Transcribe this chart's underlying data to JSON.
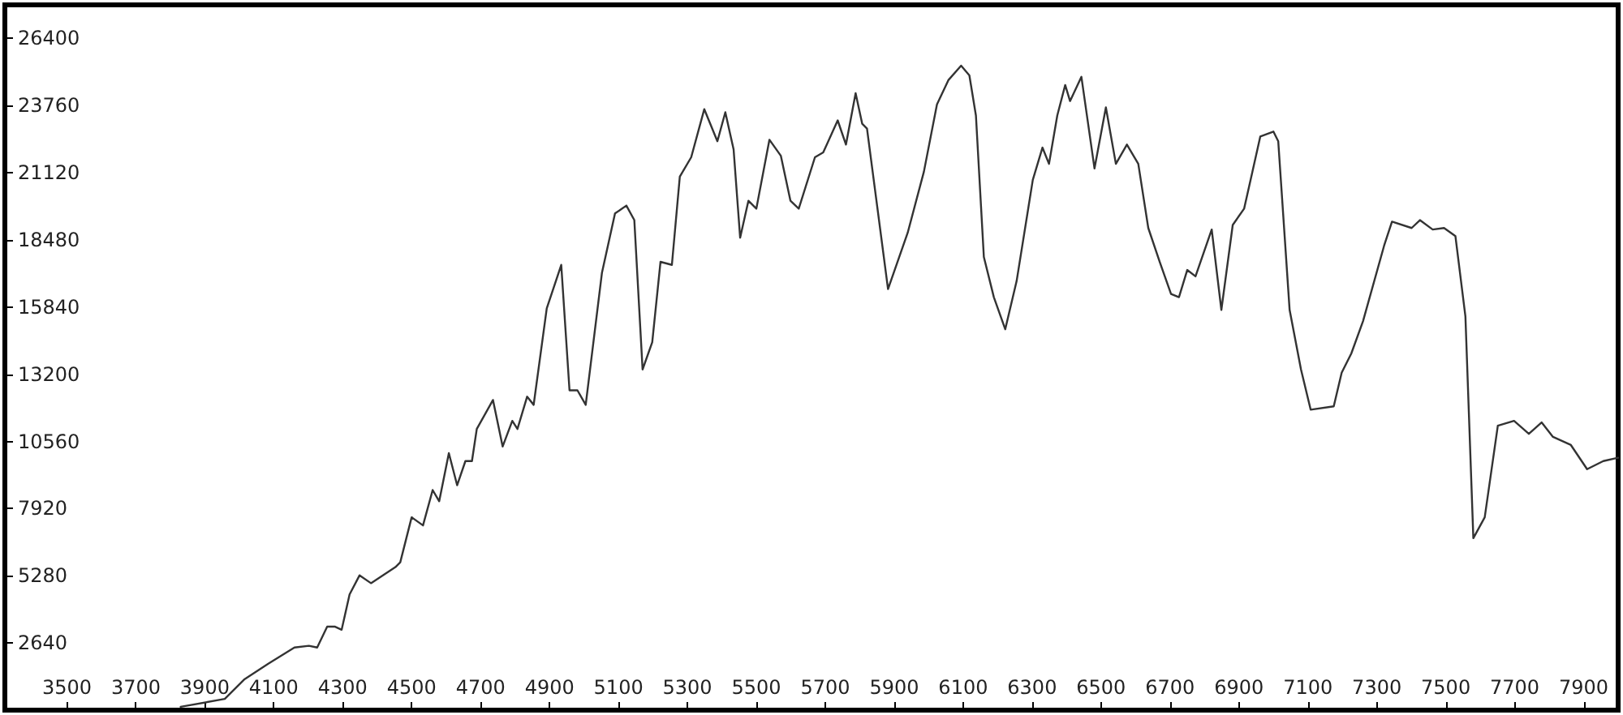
{
  "chart_data": {
    "type": "line",
    "color": "#333333",
    "marker": "none",
    "line_style": "solid",
    "xlim": [
      3320,
      8000
    ],
    "xticks": [
      3500,
      3700,
      3900,
      4100,
      4300,
      4500,
      4700,
      4900,
      5100,
      5300,
      5500,
      5700,
      5900,
      6100,
      6300,
      6500,
      6700,
      6900,
      7100,
      7300,
      7500,
      7700,
      7900
    ],
    "ylim": [
      0,
      27720
    ],
    "yticks": [
      {
        "value": 0,
        "label": null
      },
      2640,
      5280,
      7920,
      10560,
      13200,
      15840,
      18480,
      21120,
      23760,
      26400
    ],
    "x": [
      3830,
      3958,
      4014,
      4085,
      4160,
      4202,
      4226,
      4255,
      4278,
      4297,
      4320,
      4349,
      4382,
      4453,
      4467,
      4500,
      4533,
      4561,
      4580,
      4608,
      4632,
      4656,
      4675,
      4689,
      4736,
      4764,
      4792,
      4807,
      4835,
      4854,
      4892,
      4934,
      4958,
      4981,
      5005,
      5052,
      5090,
      5123,
      5146,
      5170,
      5198,
      5222,
      5255,
      5278,
      5311,
      5349,
      5387,
      5410,
      5434,
      5453,
      5477,
      5500,
      5538,
      5571,
      5599,
      5623,
      5670,
      5694,
      5736,
      5760,
      5788,
      5807,
      5821,
      5882,
      5939,
      5986,
      6024,
      6057,
      6094,
      6118,
      6137,
      6160,
      6189,
      6222,
      6255,
      6302,
      6330,
      6349,
      6373,
      6396,
      6410,
      6443,
      6481,
      6514,
      6543,
      6575,
      6608,
      6637,
      6670,
      6703,
      6726,
      6750,
      6774,
      6821,
      6849,
      6882,
      6915,
      6939,
      6962,
      7000,
      7014,
      7047,
      7080,
      7108,
      7175,
      7198,
      7226,
      7260,
      7321,
      7344,
      7401,
      7425,
      7462,
      7495,
      7528,
      7557,
      7580,
      7613,
      7651,
      7698,
      7741,
      7778,
      7811,
      7863,
      7910,
      7957,
      8000
    ],
    "values": [
      130,
      440,
      1200,
      1830,
      2460,
      2530,
      2460,
      3280,
      3280,
      3160,
      4550,
      5300,
      4990,
      5620,
      5810,
      7580,
      7260,
      8650,
      8210,
      10100,
      8840,
      9790,
      9790,
      11050,
      12190,
      10360,
      11370,
      11050,
      12320,
      12000,
      15790,
      17500,
      12570,
      12570,
      12000,
      17180,
      19520,
      19830,
      19260,
      13390,
      14460,
      17620,
      17500,
      20970,
      21730,
      23620,
      22360,
      23500,
      22040,
      18570,
      20020,
      19710,
      22420,
      21790,
      20020,
      19710,
      21730,
      21920,
      23180,
      22230,
      24250,
      23050,
      22860,
      16550,
      18760,
      21160,
      23810,
      24760,
      25330,
      24950,
      23370,
      17810,
      16230,
      14970,
      16860,
      20840,
      22110,
      21470,
      23370,
      24570,
      23940,
      24890,
      21290,
      23690,
      21470,
      22230,
      21470,
      18950,
      17620,
      16360,
      16230,
      17300,
      17050,
      18890,
      15730,
      19070,
      19710,
      21160,
      22550,
      22740,
      22360,
      15730,
      13390,
      11810,
      11940,
      13260,
      14020,
      15290,
      18250,
      19200,
      18950,
      19260,
      18890,
      18950,
      18630,
      15470,
      6760,
      7580,
      11180,
      11370,
      10860,
      11310,
      10740,
      10420,
      9470,
      9790,
      9920
    ]
  }
}
